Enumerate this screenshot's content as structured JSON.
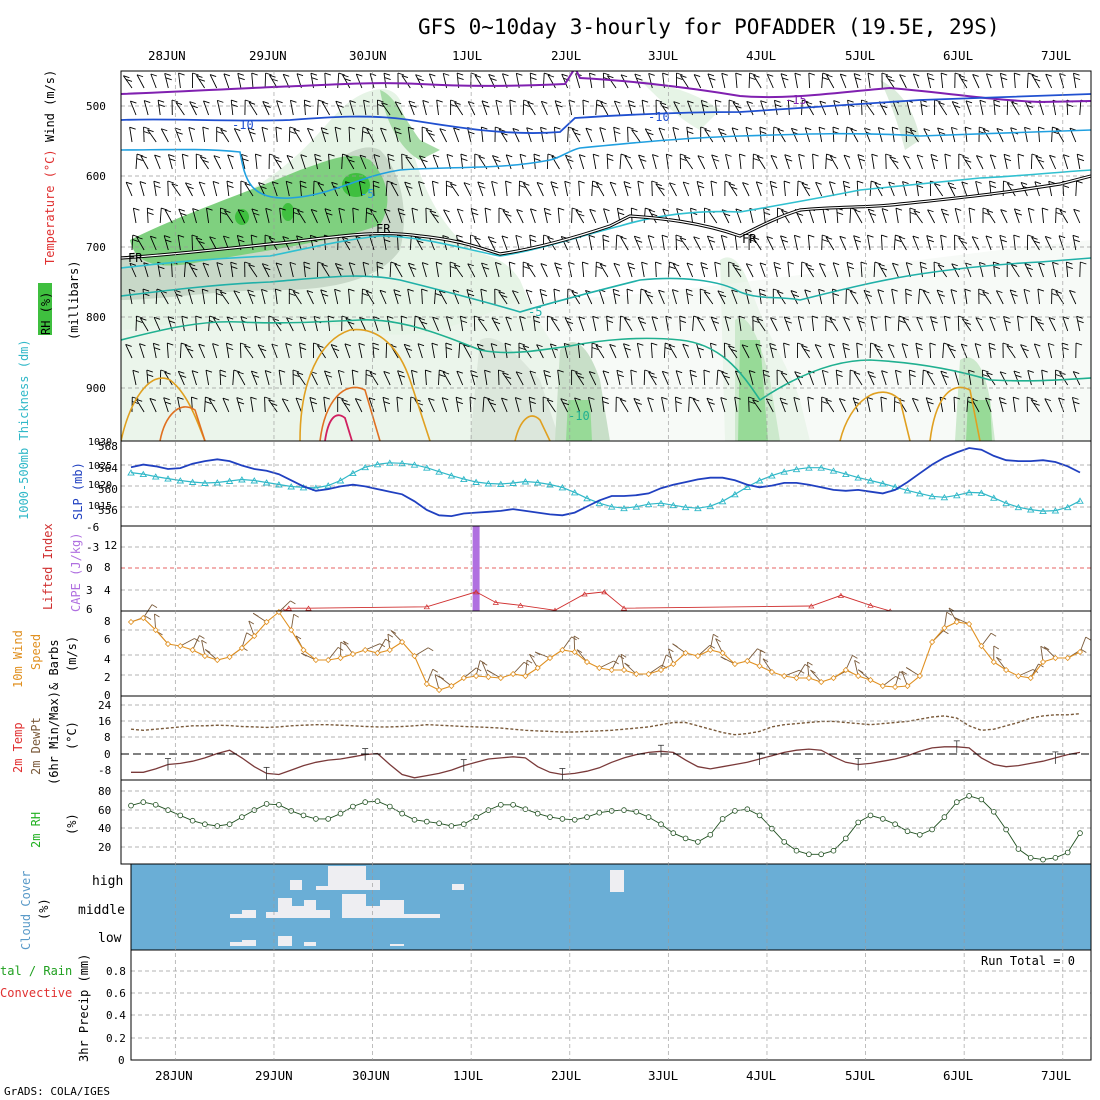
{
  "title": "GFS 0~10day 3-hourly for POFADDER (19.5E, 29S)",
  "footer": "GrADS: COLA/IGES",
  "dates": [
    "28JUN",
    "29JUN",
    "30JUN",
    "1JUL",
    "2JUL",
    "3JUL",
    "4JUL",
    "5JUL",
    "6JUL",
    "7JUL"
  ],
  "colors": {
    "rh_green": "#3fbf3f",
    "temp_red": "#e03030",
    "wind_blue": "#3030d0",
    "thick_cyan": "#30b8c8",
    "slp_blue": "#2040c0",
    "lifted_red": "#d03030",
    "cape_purple": "#b070e0",
    "wind10_orange": "#e09020",
    "rh2m_green": "#20b020",
    "cloud_blue": "#6aaed6",
    "precip_green": "#20a020"
  },
  "panels": {
    "upper": {
      "label_rh": "RH (%)",
      "label_temp": "Temperature (°C)",
      "label_wind": "Wind (m/s)",
      "label_mb": "(millibars)",
      "yticks": [
        "500",
        "600",
        "700",
        "800",
        "900"
      ],
      "contour_labels": [
        "-15",
        "-10",
        "-10",
        "-5",
        "-5",
        "-10",
        "FR",
        "FR",
        "FR"
      ]
    },
    "thick": {
      "label_thick": "1000-500mb Thickness (dm)",
      "label_slp": "SLP (mb)",
      "ticks_left": [
        "568",
        "564",
        "560",
        "556"
      ],
      "ticks_right": [
        "1030",
        "1025",
        "1020",
        "1015"
      ]
    },
    "cape": {
      "label_li": "Lifted Index",
      "label_cape": "CAPE (J/kg)",
      "ticks_left": [
        "-6",
        "-3",
        "0",
        "3",
        "6"
      ],
      "ticks_right": [
        "12",
        "8",
        "4"
      ]
    },
    "wind10": {
      "label_a": "10m Wind",
      "label_b": "Speed",
      "label_c": "& Barbs",
      "label_d": "(m/s)",
      "ticks": [
        "8",
        "6",
        "4",
        "2",
        "0"
      ]
    },
    "temp2m": {
      "label_a": "2m Temp",
      "label_b": "2m DewPt",
      "label_c": "(6hr Min/Max)",
      "label_d": "(°C)",
      "ticks": [
        "24",
        "16",
        "8",
        "0",
        "-8"
      ]
    },
    "rh2m": {
      "label_a": "2m RH",
      "label_b": "(%)",
      "ticks": [
        "80",
        "60",
        "40",
        "20"
      ]
    },
    "cloud": {
      "label_a": "Cloud Cover",
      "label_b": "(%)",
      "levels": [
        "high",
        "middle",
        "low"
      ]
    },
    "precip": {
      "label_a": "tal / Rain",
      "label_b": "Convective",
      "label_c": "3hr Precip (mm)",
      "ticks": [
        "0.8",
        "0.6",
        "0.4",
        "0.2",
        "0"
      ],
      "run_total": "Run Total = 0"
    }
  },
  "chart_data": [
    {
      "type": "line",
      "title": "1000-500mb Thickness (dm)",
      "ylabel": "1000-500mb Thickness (dm)",
      "ylim": [
        553,
        568
      ],
      "series": [
        {
          "name": "1000-500mb Thickness (dm)",
          "x_start_days": 0,
          "step_days": 0.125,
          "values": [
            562.6,
            562.3,
            561.8,
            561.4,
            561.0,
            560.7,
            560.5,
            560.6,
            560.9,
            561.2,
            561.0,
            560.6,
            560.2,
            559.8,
            559.6,
            559.5,
            560.0,
            561.0,
            562.5,
            563.7,
            564.3,
            564.6,
            564.5,
            564.2,
            563.6,
            562.8,
            562.0,
            561.3,
            560.7,
            560.4,
            560.3,
            560.5,
            560.8,
            560.6,
            560.2,
            559.6,
            558.6,
            557.4,
            556.4,
            555.7,
            555.4,
            555.7,
            556.2,
            556.4,
            556.0,
            555.6,
            555.4,
            555.8,
            556.8,
            558.2,
            559.7,
            561.0,
            562.0,
            562.8,
            563.3,
            563.6,
            563.6,
            563.0,
            562.3,
            561.6,
            561.0,
            560.4,
            559.7,
            559.0,
            558.4,
            557.8,
            557.6,
            558.0,
            558.6,
            558.5,
            557.5,
            556.4,
            555.6,
            555.1,
            554.8,
            554.9,
            555.6,
            556.9,
            558.6,
            560.0,
            561.0,
            561.6,
            562.0,
            562.3,
            562.5,
            562.6,
            562.9,
            563.3,
            563.6,
            563.8,
            563.8,
            563.4,
            563.0,
            563.1,
            563.8,
            564.8,
            565.6,
            566.2,
            566.7,
            567.1,
            567.4,
            567.6,
            567.7,
            567.7,
            567.8,
            567.9,
            568.0,
            568.0,
            568.0,
            568.0
          ]
        }
      ]
    },
    {
      "type": "line",
      "title": "SLP (mb)",
      "ylabel": "SLP (mb)",
      "ylim": [
        1011,
        1030
      ],
      "series": [
        {
          "name": "SLP (mb)",
          "x_start_days": 0,
          "step_days": 0.125,
          "values": [
            1024.0,
            1024.6,
            1024.2,
            1023.6,
            1023.8,
            1024.8,
            1025.4,
            1025.8,
            1025.4,
            1024.4,
            1023.6,
            1023.2,
            1022.4,
            1021.0,
            1019.6,
            1018.6,
            1019.0,
            1019.6,
            1020.0,
            1019.6,
            1019.0,
            1018.4,
            1017.8,
            1016.2,
            1014.2,
            1013.0,
            1012.8,
            1013.4,
            1013.6,
            1013.8,
            1014.0,
            1014.4,
            1014.0,
            1013.6,
            1013.2,
            1013.0,
            1013.6,
            1015.0,
            1016.4,
            1017.4,
            1017.4,
            1017.6,
            1018.0,
            1019.2,
            1020.0,
            1020.6,
            1021.2,
            1021.6,
            1021.6,
            1021.0,
            1020.0,
            1019.4,
            1019.8,
            1020.4,
            1020.4,
            1020.0,
            1019.4,
            1018.8,
            1018.6,
            1018.8,
            1018.4,
            1018.0,
            1018.8,
            1020.6,
            1022.6,
            1024.6,
            1026.2,
            1027.4,
            1028.4,
            1028.0,
            1026.6,
            1025.6,
            1025.4,
            1025.4,
            1025.6,
            1025.2,
            1024.2,
            1022.8,
            1022.0,
            1021.6,
            1021.0,
            1020.2,
            1019.8,
            1020.0,
            1020.4,
            1021.0,
            1021.6,
            1022.2,
            1021.8,
            1021.4,
            1021.2,
            1021.4,
            1021.8,
            1022.2,
            1022.4,
            1022.8,
            1023.6,
            1025.2,
            1026.4,
            1025.0,
            1023.6,
            1022.8,
            1022.6,
            1022.4,
            1022.2,
            1022.0,
            1022.0,
            1022.0,
            1022.2,
            1022.4
          ]
        }
      ]
    },
    {
      "type": "line",
      "title": "Lifted Index",
      "ylabel": "Lifted Index",
      "ylim": [
        -6,
        6
      ],
      "series": [
        {
          "name": "Lifted Index",
          "points": [
            [
              1.55,
              6
            ],
            [
              1.6,
              5.6
            ],
            [
              1.8,
              5.6
            ],
            [
              3.0,
              5.4
            ],
            [
              3.5,
              3.3
            ],
            [
              3.7,
              4.8
            ],
            [
              3.95,
              5.2
            ],
            [
              4.3,
              5.9
            ],
            [
              4.6,
              3.6
            ],
            [
              4.8,
              3.3
            ],
            [
              5.0,
              5.6
            ],
            [
              6.9,
              5.3
            ],
            [
              7.2,
              3.8
            ],
            [
              7.5,
              5.2
            ],
            [
              7.7,
              6
            ]
          ]
        }
      ]
    },
    {
      "type": "bar",
      "title": "CAPE (J/kg)",
      "ylabel": "CAPE (J/kg)",
      "ylim": [
        0,
        14
      ],
      "series": [
        {
          "name": "CAPE (J/kg)",
          "points": [
            [
              3.5,
              14
            ]
          ]
        }
      ]
    },
    {
      "type": "line",
      "title": "10m Wind Speed (m/s)",
      "ylabel": "Speed (m/s)",
      "ylim": [
        0,
        8.5
      ],
      "series": [
        {
          "name": "Speed",
          "x_start_days": 0,
          "step_days": 0.125,
          "values": [
            7.4,
            7.8,
            6.6,
            5.2,
            5.0,
            4.6,
            4.0,
            3.6,
            3.9,
            4.8,
            6.0,
            7.4,
            8.4,
            6.6,
            4.6,
            3.6,
            3.6,
            3.8,
            4.2,
            4.6,
            4.3,
            4.6,
            5.4,
            4.0,
            1.2,
            0.6,
            1.0,
            1.8,
            2.0,
            1.9,
            1.8,
            2.2,
            2.0,
            2.8,
            3.8,
            4.6,
            4.4,
            3.4,
            2.8,
            2.6,
            2.6,
            2.2,
            2.2,
            2.6,
            3.2,
            4.3,
            4.0,
            4.6,
            4.3,
            3.2,
            3.5,
            3.0,
            2.4,
            2.0,
            1.8,
            1.8,
            1.4,
            1.8,
            2.6,
            2.0,
            1.6,
            1.0,
            0.9,
            1.0,
            2.0,
            5.4,
            6.8,
            7.4,
            7.2,
            5.0,
            3.4,
            2.6,
            2.0,
            1.8,
            3.4,
            3.8,
            3.8,
            4.4,
            4.5,
            3.8,
            3.4,
            3.8,
            3.6,
            3.1,
            2.4,
            2.8,
            3.2,
            3.6,
            3.8,
            2.8,
            2.0,
            2.4,
            3.4,
            3.2,
            2.8,
            2.4,
            2.0,
            2.2,
            2.8,
            2.4,
            1.8,
            0.4,
            2.2,
            2.4,
            1.6,
            1.1,
            0.6,
            2.8,
            2.4,
            2.4,
            3.6
          ]
        }
      ]
    },
    {
      "type": "area",
      "title": "2m Temp / 2m DewPt (°C)",
      "ylabel": "(°C)",
      "ylim": [
        -12,
        26
      ],
      "series": [
        {
          "name": "2m Temp",
          "x_start_days": 0,
          "step_days": 0.125,
          "values": [
            22.5,
            22.5,
            21.0,
            19.0,
            18.5,
            17.5,
            16.0,
            14.0,
            12.5,
            16.0,
            20.0,
            23.0,
            23.5,
            21.5,
            19.5,
            18.0,
            17.0,
            16.5,
            15.5,
            14.5,
            14.0,
            19.0,
            23.5,
            25.0,
            24.0,
            23.0,
            21.5,
            19.5,
            18.0,
            16.5,
            16.0,
            15.5,
            16.0,
            20.0,
            22.5,
            23.5,
            23.0,
            22.0,
            20.5,
            18.0,
            16.0,
            14.5,
            13.5,
            13.0,
            13.5,
            17.0,
            20.0,
            21.0,
            20.0,
            19.0,
            18.0,
            16.5,
            15.0,
            13.5,
            12.5,
            12.0,
            12.5,
            15.5,
            18.0,
            19.0,
            18.5,
            17.5,
            16.5,
            15.0,
            13.0,
            11.5,
            11.0,
            11.0,
            11.5,
            16.0,
            19.0,
            20.0,
            19.5,
            18.5,
            17.5,
            16.0,
            14.5,
            13.5,
            12.5,
            12.0,
            12.5,
            16.0,
            19.0,
            20.0,
            19.5,
            18.5,
            17.0,
            15.5,
            14.0,
            12.5,
            12.0,
            11.5,
            11.5,
            16.0,
            19.0,
            20.0,
            19.5,
            18.0,
            16.5,
            15.0,
            13.5,
            12.5,
            11.5,
            11.0,
            11.0,
            10.0,
            9.5,
            9.0,
            8.5,
            8.0
          ]
        },
        {
          "name": "2m DewPt",
          "x_start_days": 0,
          "step_days": 0.125,
          "values": [
            3.0,
            3.5,
            3.0,
            2.5,
            2.0,
            1.5,
            1.5,
            1.2,
            1.4,
            1.8,
            2.0,
            2.2,
            2.0,
            1.5,
            1.2,
            1.0,
            1.0,
            1.2,
            1.5,
            1.8,
            2.0,
            2.0,
            1.8,
            1.5,
            1.0,
            1.2,
            1.5,
            1.8,
            2.0,
            2.2,
            2.5,
            3.0,
            3.5,
            3.8,
            4.0,
            4.3,
            4.3,
            4.0,
            3.8,
            3.5,
            3.0,
            2.5,
            2.0,
            1.0,
            0.0,
            0.0,
            1.5,
            3.0,
            4.5,
            5.5,
            5.0,
            4.0,
            2.0,
            1.0,
            0.5,
            0.0,
            -0.5,
            -0.5,
            0.0,
            0.5,
            1.0,
            0.5,
            0.0,
            -0.5,
            -1.5,
            -2.5,
            -3.0,
            -2.0,
            1.5,
            3.5,
            3.0,
            1.5,
            0.0,
            -2.0,
            -3.0,
            -3.5,
            -3.5,
            -4.0,
            -4.5,
            -4.5,
            -5.0,
            -5.0,
            -5.5,
            -6.5,
            -7.0,
            -7.5,
            -7.5,
            -7.5,
            -7.5,
            -6.5,
            -3.0,
            0.5,
            3.0,
            3.5,
            3.0,
            2.0,
            1.0,
            0.5,
            0.3,
            0.2,
            0.0,
            -0.2,
            -0.5,
            -1.0,
            -1.5,
            -1.5,
            -1.2,
            -0.8,
            -0.5,
            -0.5
          ]
        }
      ]
    },
    {
      "type": "area",
      "title": "2m RH (%)",
      "ylabel": "(%)",
      "ylim": [
        0,
        95
      ],
      "series": [
        {
          "name": "2m RH",
          "x_start_days": 0,
          "step_days": 0.125,
          "values": [
            29,
            25,
            28,
            34,
            40,
            46,
            50,
            52,
            50,
            42,
            34,
            27,
            28,
            35,
            40,
            44,
            44,
            38,
            30,
            25,
            24,
            30,
            38,
            45,
            47,
            49,
            52,
            50,
            42,
            34,
            28,
            28,
            33,
            38,
            42,
            44,
            45,
            42,
            37,
            35,
            34,
            36,
            42,
            50,
            60,
            66,
            70,
            62,
            44,
            35,
            33,
            40,
            55,
            70,
            80,
            84,
            84,
            80,
            66,
            48,
            40,
            44,
            50,
            58,
            62,
            56,
            42,
            25,
            18,
            22,
            36,
            56,
            78,
            88,
            90,
            88,
            82,
            60,
            38,
            25,
            24,
            28,
            33,
            38,
            40,
            40,
            36,
            28,
            20,
            16,
            16,
            18,
            24,
            32,
            38,
            44,
            50,
            66,
            80,
            88,
            70,
            50,
            40,
            38,
            40,
            40,
            41,
            42,
            41,
            40
          ]
        }
      ]
    }
  ]
}
